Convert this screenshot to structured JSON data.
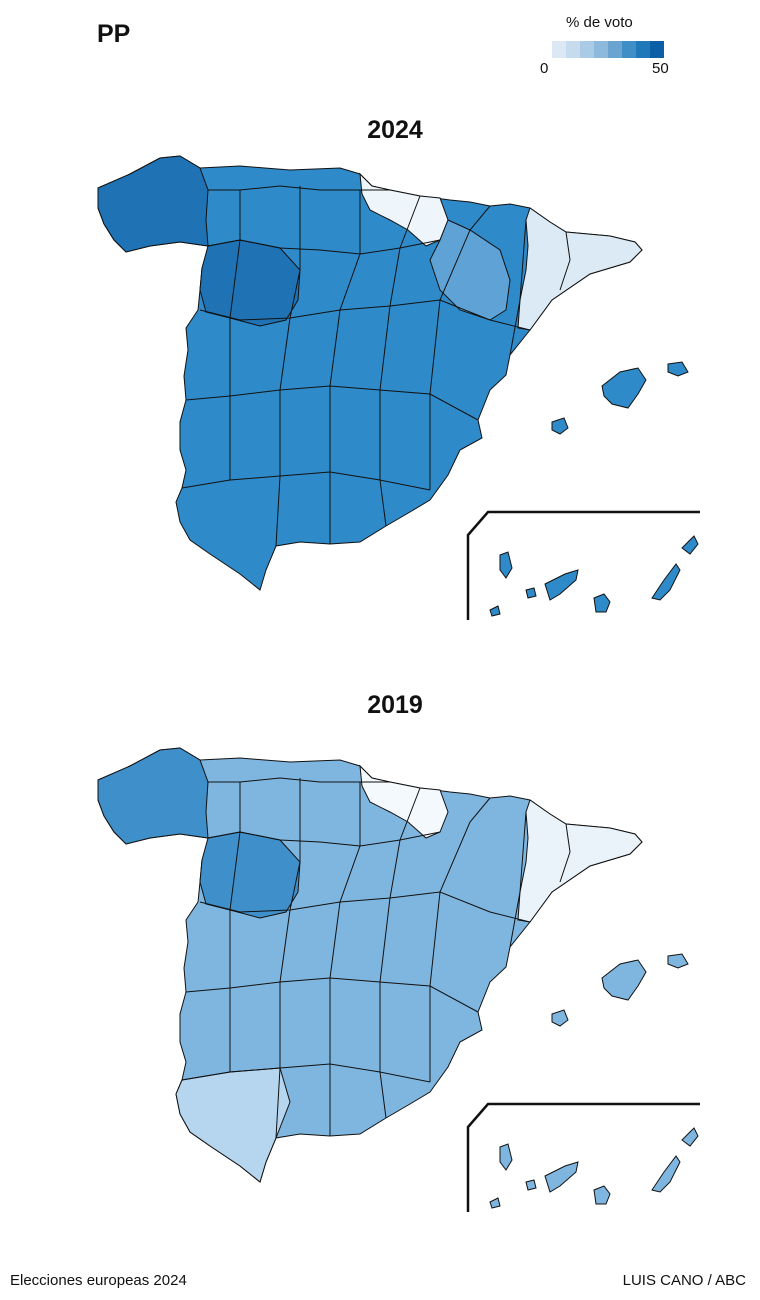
{
  "party": "PP",
  "legend": {
    "title": "% de voto",
    "min_label": "0",
    "max_label": "50",
    "colors": [
      "#dce9f4",
      "#c6dcee",
      "#a9cbe5",
      "#8db9dc",
      "#6aa5d2",
      "#3f8fc6",
      "#1f78b8",
      "#0a5fa6"
    ]
  },
  "panels": [
    {
      "year": "2024",
      "colors": {
        "main": "#2f8ac9",
        "dark": "#1f73b5",
        "light": "#5fa3d6",
        "east": "#dbeaf5",
        "basque": "#eef5fb"
      }
    },
    {
      "year": "2019",
      "colors": {
        "main": "#7fb6e0",
        "dark": "#3f8fca",
        "light": "#b6d5ee",
        "east": "#eaf3fa",
        "basque": "#f4f9fd"
      }
    }
  ],
  "footer": {
    "left": "Elecciones europeas 2024",
    "right": "LUIS CANO / ABC"
  }
}
